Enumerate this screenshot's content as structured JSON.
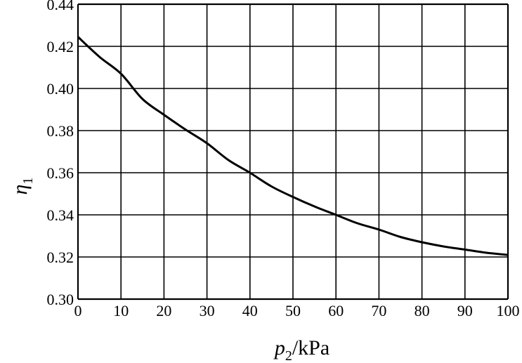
{
  "chart_data": {
    "type": "line",
    "xlabel": {
      "symbol": "p",
      "subscript": "2",
      "unit": "/kPa"
    },
    "ylabel": {
      "symbol": "η",
      "subscript": "1"
    },
    "xlim": [
      0,
      100
    ],
    "ylim": [
      0.3,
      0.44
    ],
    "grid": true,
    "x_ticks": [
      "0",
      "10",
      "20",
      "30",
      "40",
      "50",
      "60",
      "70",
      "80",
      "90",
      "100"
    ],
    "y_ticks": [
      "0.30",
      "0.32",
      "0.34",
      "0.36",
      "0.38",
      "0.40",
      "0.42",
      "0.44"
    ],
    "series": [
      {
        "x": [
          0,
          5,
          10,
          15,
          20,
          25,
          30,
          35,
          40,
          45,
          50,
          55,
          60,
          65,
          70,
          75,
          80,
          85,
          90,
          95,
          100
        ],
        "values": [
          0.4245,
          0.415,
          0.407,
          0.395,
          0.3875,
          0.3805,
          0.374,
          0.366,
          0.36,
          0.3535,
          0.3485,
          0.344,
          0.34,
          0.336,
          0.333,
          0.3295,
          0.327,
          0.325,
          0.3235,
          0.322,
          0.321
        ]
      }
    ]
  }
}
